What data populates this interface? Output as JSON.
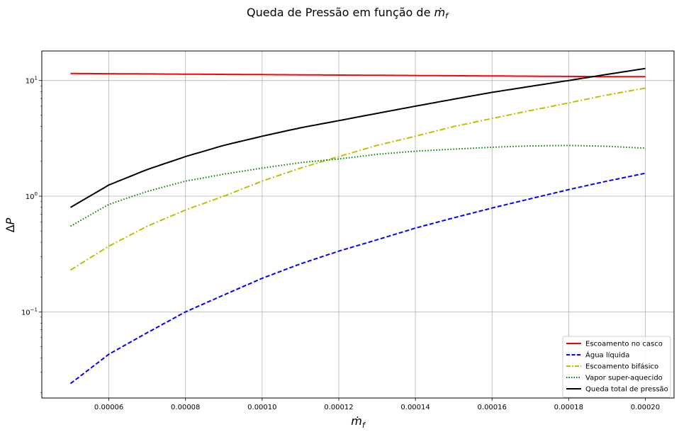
{
  "chart_data": {
    "type": "line",
    "title": "Queda de Pressão em função de ṁ_f",
    "xlabel": "ṁ_f",
    "ylabel": "ΔP",
    "yscale": "log",
    "grid": true,
    "xlim": [
      4.25e-05,
      0.0002075
    ],
    "ylim": [
      0.018,
      18
    ],
    "x": [
      5e-05,
      6e-05,
      7e-05,
      8e-05,
      9e-05,
      0.0001,
      0.00011,
      0.00012,
      0.00013,
      0.00014,
      0.00015,
      0.00016,
      0.00017,
      0.00018,
      0.00019,
      0.0002
    ],
    "x_ticks": [
      6e-05,
      8e-05,
      0.0001,
      0.00012,
      0.00014,
      0.00016,
      0.00018,
      0.0002
    ],
    "x_tick_labels": [
      "0.00006",
      "0.00008",
      "0.00010",
      "0.00012",
      "0.00014",
      "0.00016",
      "0.00018",
      "0.00020"
    ],
    "y_ticks": [
      0.1,
      1,
      10
    ],
    "y_tick_labels": [
      {
        "base": "10",
        "exp": "−1"
      },
      {
        "base": "10",
        "exp": "0"
      },
      {
        "base": "10",
        "exp": "1"
      }
    ],
    "legend_position": "bottom-right",
    "series": [
      {
        "name": "Escoamento no casco",
        "color": "#ff0000",
        "dash": "solid",
        "values": [
          11.5,
          11.45,
          11.4,
          11.35,
          11.3,
          11.25,
          11.2,
          11.15,
          11.1,
          11.05,
          11.0,
          10.95,
          10.9,
          10.85,
          10.8,
          10.8
        ]
      },
      {
        "name": "Água líquida",
        "color": "#0000ff",
        "dash": "dashed",
        "values": [
          0.024,
          0.043,
          0.066,
          0.1,
          0.14,
          0.195,
          0.26,
          0.335,
          0.42,
          0.53,
          0.65,
          0.79,
          0.95,
          1.14,
          1.35,
          1.58
        ]
      },
      {
        "name": "Escoamento bifásico",
        "color": "#bfbf00",
        "dash": "dashdot",
        "values": [
          0.23,
          0.37,
          0.55,
          0.76,
          1.0,
          1.35,
          1.75,
          2.2,
          2.75,
          3.3,
          4.0,
          4.7,
          5.5,
          6.4,
          7.5,
          8.6
        ]
      },
      {
        "name": "Vapor super-aquecido",
        "color": "#008000",
        "dash": "dotted",
        "values": [
          0.55,
          0.85,
          1.1,
          1.35,
          1.55,
          1.75,
          1.95,
          2.1,
          2.3,
          2.45,
          2.55,
          2.65,
          2.72,
          2.75,
          2.7,
          2.6
        ]
      },
      {
        "name": "Queda total de pressão",
        "color": "#000000",
        "dash": "solid",
        "values": [
          0.8,
          1.25,
          1.7,
          2.2,
          2.75,
          3.3,
          3.9,
          4.5,
          5.2,
          6.0,
          6.9,
          7.9,
          8.9,
          10.0,
          11.3,
          12.7
        ]
      }
    ]
  }
}
